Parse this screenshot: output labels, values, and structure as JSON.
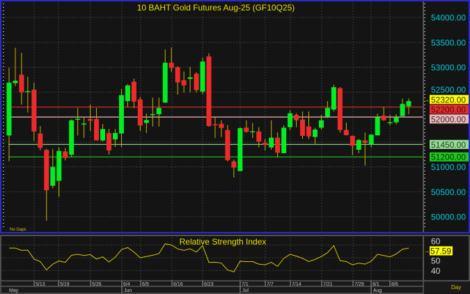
{
  "chart_data": [
    {
      "type": "candlestick",
      "title": "10 BAHT Gold Futures Aug-25 (GF10Q25)",
      "note": "No Gaps",
      "y_ticks": [
        "54000.00",
        "53500.00",
        "53000.00",
        "52500.00",
        "51000.00",
        "50500.00",
        "50000.00"
      ],
      "y_tick_values": [
        54000,
        53500,
        53000,
        52500,
        51000,
        50500,
        50000
      ],
      "ylim": [
        49800,
        54350
      ],
      "grid": true,
      "colors": {
        "up": "#00ee22",
        "down": "#ee2a2a",
        "doji": "#d8c800",
        "wick": "#c8b400",
        "axis_text": "#00c8d8"
      },
      "levels": [
        {
          "value": 52320,
          "label": "52320.00",
          "color": "#ffff00",
          "line": false
        },
        {
          "value": 52200,
          "label": "52200.00",
          "color": "#e03030",
          "line": true
        },
        {
          "value": 52000,
          "label": "52000.00",
          "color": "#f0b8b8",
          "line": true
        },
        {
          "value": 51450,
          "label": "51450.00",
          "color": "#90e090",
          "line": true
        },
        {
          "value": 51200,
          "label": "51200.00",
          "color": "#20c820",
          "line": true
        }
      ],
      "ohlc": [
        [
          51630,
          52990,
          51110,
          52690
        ],
        [
          52680,
          53390,
          52620,
          52730
        ],
        [
          52850,
          53290,
          52250,
          52495
        ],
        [
          52500,
          52810,
          52090,
          52520
        ],
        [
          52550,
          52690,
          51520,
          51710
        ],
        [
          51670,
          51820,
          51330,
          51380
        ],
        [
          51340,
          51360,
          49920,
          50530
        ],
        [
          50620,
          51360,
          50570,
          51000
        ],
        [
          50720,
          51390,
          50400,
          51320
        ],
        [
          51310,
          51380,
          51130,
          51180
        ],
        [
          51245,
          51950,
          51200,
          51935
        ],
        [
          51945,
          52180,
          51630,
          51965
        ],
        [
          51870,
          52000,
          51580,
          51870
        ],
        [
          51960,
          52250,
          51720,
          51925
        ],
        [
          51960,
          52180,
          51530,
          51530
        ],
        [
          51530,
          51860,
          51510,
          51760
        ],
        [
          51680,
          51760,
          51245,
          51330
        ],
        [
          51550,
          51760,
          51400,
          51680
        ],
        [
          51670,
          52565,
          51400,
          52440
        ],
        [
          52320,
          52660,
          52200,
          52635
        ],
        [
          52710,
          52770,
          52180,
          52310
        ],
        [
          52355,
          52400,
          51720,
          51830
        ],
        [
          51880,
          52070,
          51680,
          51940
        ],
        [
          52050,
          52390,
          51810,
          52060
        ],
        [
          52056,
          52390,
          51810,
          52182
        ],
        [
          52290,
          53360,
          52280,
          53090
        ],
        [
          53090,
          53395,
          52905,
          52985
        ],
        [
          53000,
          53020,
          52450,
          52695
        ],
        [
          52740,
          52915,
          52490,
          52635
        ],
        [
          52766,
          53008,
          52495,
          52798
        ],
        [
          52870,
          52900,
          52495,
          52540
        ],
        [
          52510,
          53195,
          52460,
          53115
        ],
        [
          53218,
          53280,
          51810,
          51820
        ],
        [
          51856,
          52010,
          51577,
          51833
        ],
        [
          51865,
          51935,
          51600,
          51780
        ],
        [
          51740,
          51842,
          51110,
          51135
        ],
        [
          51110,
          51145,
          50785,
          50985
        ],
        [
          50915,
          51796,
          50910,
          51777
        ],
        [
          51786,
          51935,
          51684,
          51702
        ],
        [
          51705,
          51880,
          51580,
          51715
        ],
        [
          51712,
          51796,
          51390,
          51507
        ],
        [
          51484,
          51563,
          51330,
          51437
        ],
        [
          51390,
          51935,
          51344,
          51586
        ],
        [
          51586,
          51693,
          51190,
          51283
        ],
        [
          51274,
          51833,
          51270,
          51786
        ],
        [
          51796,
          52136,
          51740,
          52075
        ],
        [
          52043,
          52075,
          51796,
          51935
        ],
        [
          51950,
          52112,
          51563,
          51623
        ],
        [
          51810,
          52112,
          51560,
          51610
        ],
        [
          51600,
          51786,
          51460,
          51749
        ],
        [
          51786,
          52043,
          51749,
          51935
        ],
        [
          52010,
          52320,
          51980,
          52182
        ],
        [
          52150,
          52650,
          52110,
          52600
        ],
        [
          52580,
          52600,
          51690,
          51740
        ],
        [
          51740,
          51889,
          51630,
          51637
        ],
        [
          51623,
          51630,
          51236,
          51423
        ],
        [
          51344,
          51563,
          51274,
          51539
        ],
        [
          51530,
          51693,
          51027,
          51479
        ],
        [
          51446,
          51656,
          51390,
          51646
        ],
        [
          51632,
          52066,
          51630,
          51996
        ],
        [
          52028,
          52206,
          51926,
          51935
        ],
        [
          51890,
          52043,
          51833,
          51895
        ],
        [
          51893,
          52056,
          51856,
          51996
        ],
        [
          52019,
          52370,
          52015,
          52262
        ],
        [
          52215,
          52370,
          52056,
          52320
        ]
      ]
    },
    {
      "type": "line",
      "title": "Relative Strength Index",
      "y_ticks": [
        "60",
        "50",
        "40"
      ],
      "y_tick_values": [
        60,
        50,
        40
      ],
      "ylim": [
        35,
        67
      ],
      "color": "#d8c800",
      "last_label": "57.59",
      "values": [
        57.6,
        57.6,
        55.8,
        56,
        49,
        47,
        40.5,
        45,
        47.5,
        46.4,
        52,
        52.7,
        51.8,
        52.5,
        49,
        50.7,
        46.7,
        50.4,
        56.4,
        58,
        54.5,
        50,
        51,
        52,
        53.3,
        61,
        60,
        57,
        55.8,
        57,
        54.5,
        59.5,
        46.4,
        46.5,
        45.8,
        40.4,
        39,
        47.3,
        47,
        47,
        45,
        44.5,
        46.4,
        43.3,
        49.6,
        52.7,
        51.3,
        49.6,
        47,
        48.7,
        51,
        54,
        59.5,
        47.8,
        47,
        44.5,
        45.8,
        45,
        47.3,
        52.7,
        51.8,
        50.7,
        53,
        56.7,
        57.59
      ]
    }
  ],
  "x_axis": {
    "day_ticks": [
      "5/13",
      "5/19",
      "5/26",
      "6/4",
      "6/9",
      "6/16",
      "6/23",
      "7/1",
      "7/7",
      "7/14",
      "7/21",
      "7/29",
      "8/1",
      "8/6"
    ],
    "months": [
      "May",
      "Jun",
      "Jul",
      "Aug"
    ],
    "period": "Day"
  }
}
